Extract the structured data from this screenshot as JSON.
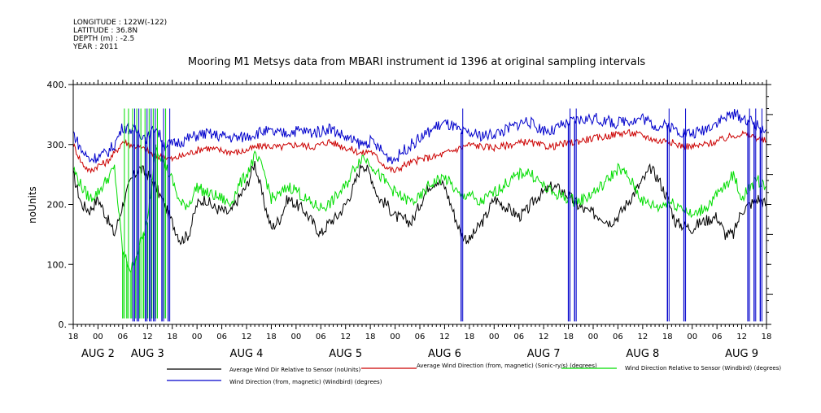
{
  "header": {
    "longitude": "LONGITUDE : 122W(-122)",
    "latitude": "LATITUDE : 36.8N",
    "depth": "DEPTH (m) : -2.5",
    "year": "YEAR : 2011"
  },
  "chart_data": {
    "type": "line",
    "title": "Mooring M1 Metsys data from MBARI instrument id 1396 at original sampling intervals",
    "xlabel": "",
    "ylabel": "noUnits",
    "ylim": [
      0,
      400
    ],
    "y_ticks": [
      0,
      100,
      200,
      300,
      400
    ],
    "y_tick_labels": [
      "0.",
      "100.",
      "200.",
      "300.",
      "400."
    ],
    "x_range_hours": [
      -6,
      162
    ],
    "x_tick_labels": [
      "18",
      "00",
      "06",
      "12",
      "18",
      "00",
      "06",
      "12",
      "18",
      "00",
      "06",
      "12",
      "18",
      "00",
      "06",
      "12",
      "18",
      "00",
      "06",
      "12",
      "18",
      "00",
      "06",
      "12",
      "18",
      "00",
      "06",
      "12",
      "18"
    ],
    "day_labels": [
      {
        "text": "AUG  2",
        "hour": 0
      },
      {
        "text": "AUG  3",
        "hour": 12
      },
      {
        "text": "AUG  4",
        "hour": 36
      },
      {
        "text": "AUG  5",
        "hour": 60
      },
      {
        "text": "AUG  6",
        "hour": 84
      },
      {
        "text": "AUG  7",
        "hour": 108
      },
      {
        "text": "AUG  8",
        "hour": 132
      },
      {
        "text": "AUG  9",
        "hour": 156
      }
    ],
    "grid": false,
    "legend_position": "bottom",
    "series": [
      {
        "name": "Average Wind Dir Relative to Sensor (noUnits)",
        "color": "#000000",
        "x": [
          -6,
          -4,
          -2,
          0,
          2,
          4,
          6,
          8,
          10,
          12,
          14,
          16,
          18,
          20,
          22,
          24,
          26,
          28,
          30,
          32,
          34,
          36,
          38,
          40,
          42,
          44,
          46,
          48,
          50,
          52,
          54,
          56,
          58,
          60,
          62,
          64,
          66,
          68,
          70,
          72,
          74,
          76,
          78,
          80,
          82,
          84,
          86,
          88,
          90,
          92,
          94,
          96,
          98,
          100,
          102,
          104,
          106,
          108,
          110,
          112,
          114,
          116,
          118,
          120,
          122,
          124,
          126,
          128,
          130,
          132,
          134,
          136,
          138,
          140,
          142,
          144,
          146,
          148,
          150,
          152,
          154,
          156,
          158,
          160,
          162
        ],
        "y": [
          250,
          200,
          190,
          210,
          180,
          150,
          200,
          240,
          260,
          250,
          230,
          200,
          170,
          140,
          150,
          200,
          210,
          195,
          190,
          185,
          210,
          230,
          270,
          210,
          160,
          175,
          210,
          200,
          190,
          170,
          150,
          170,
          180,
          200,
          230,
          270,
          250,
          210,
          200,
          180,
          175,
          170,
          200,
          230,
          240,
          230,
          190,
          150,
          140,
          160,
          180,
          210,
          200,
          190,
          180,
          190,
          210,
          220,
          230,
          225,
          215,
          200,
          190,
          185,
          180,
          170,
          180,
          200,
          220,
          240,
          260,
          240,
          210,
          170,
          165,
          160,
          170,
          175,
          180,
          150,
          150,
          190,
          200,
          210,
          200
        ]
      },
      {
        "name": "Average Wind Direction (from, magnetic) (Sonic-ry/s) (degrees)",
        "color": "#cc0000",
        "x": [
          -6,
          -4,
          -2,
          0,
          2,
          4,
          6,
          8,
          10,
          12,
          14,
          16,
          18,
          20,
          22,
          24,
          26,
          28,
          30,
          32,
          34,
          36,
          38,
          40,
          42,
          44,
          46,
          48,
          50,
          52,
          54,
          56,
          58,
          60,
          62,
          64,
          66,
          68,
          70,
          72,
          74,
          76,
          78,
          80,
          82,
          84,
          86,
          88,
          90,
          92,
          94,
          96,
          98,
          100,
          102,
          104,
          106,
          108,
          110,
          112,
          114,
          116,
          118,
          120,
          122,
          124,
          126,
          128,
          130,
          132,
          134,
          136,
          138,
          140,
          142,
          144,
          146,
          148,
          150,
          152,
          154,
          156,
          158,
          160,
          162
        ],
        "y": [
          300,
          270,
          255,
          265,
          270,
          285,
          305,
          300,
          295,
          290,
          280,
          280,
          275,
          280,
          285,
          290,
          295,
          292,
          290,
          288,
          287,
          290,
          295,
          298,
          297,
          295,
          298,
          300,
          298,
          296,
          300,
          305,
          300,
          295,
          290,
          285,
          290,
          275,
          262,
          255,
          265,
          270,
          275,
          278,
          280,
          285,
          290,
          295,
          300,
          298,
          296,
          295,
          297,
          300,
          302,
          305,
          300,
          298,
          296,
          300,
          302,
          305,
          308,
          310,
          312,
          315,
          318,
          320,
          318,
          315,
          310,
          305,
          308,
          300,
          298,
          296,
          298,
          302,
          305,
          310,
          315,
          318,
          315,
          310,
          305
        ]
      },
      {
        "name": "Wind Direction Relative to Sensor (Windbird) (degrees)",
        "color": "#00dd00",
        "x": [
          -6,
          -4,
          -2,
          0,
          2,
          4,
          6,
          8,
          10,
          12,
          14,
          16,
          18,
          20,
          22,
          24,
          26,
          28,
          30,
          32,
          34,
          36,
          38,
          40,
          42,
          44,
          46,
          48,
          50,
          52,
          54,
          56,
          58,
          60,
          62,
          64,
          66,
          68,
          70,
          72,
          74,
          76,
          78,
          80,
          82,
          84,
          86,
          88,
          90,
          92,
          94,
          96,
          98,
          100,
          102,
          104,
          106,
          108,
          110,
          112,
          114,
          116,
          118,
          120,
          122,
          124,
          126,
          128,
          130,
          132,
          134,
          136,
          138,
          140,
          142,
          144,
          146,
          148,
          150,
          152,
          154,
          156,
          158,
          160,
          162
        ],
        "y": [
          260,
          230,
          210,
          220,
          240,
          260,
          120,
          90,
          130,
          170,
          300,
          270,
          240,
          200,
          200,
          230,
          220,
          215,
          210,
          200,
          230,
          250,
          280,
          260,
          210,
          215,
          230,
          225,
          210,
          200,
          195,
          200,
          215,
          230,
          260,
          280,
          270,
          250,
          235,
          220,
          210,
          205,
          210,
          230,
          240,
          245,
          230,
          210,
          220,
          200,
          210,
          220,
          230,
          240,
          250,
          255,
          245,
          230,
          220,
          215,
          210,
          205,
          210,
          220,
          230,
          245,
          260,
          250,
          230,
          205,
          200,
          195,
          205,
          200,
          195,
          180,
          190,
          200,
          215,
          230,
          250,
          210,
          230,
          240,
          230
        ]
      },
      {
        "name": "Wind Direction (from, magnetic) (Windbird) (degrees)",
        "color": "#0000cc",
        "x": [
          -6,
          -4,
          -2,
          0,
          2,
          4,
          6,
          8,
          10,
          12,
          14,
          16,
          18,
          20,
          22,
          24,
          26,
          28,
          30,
          32,
          34,
          36,
          38,
          40,
          42,
          44,
          46,
          48,
          50,
          52,
          54,
          56,
          58,
          60,
          62,
          64,
          66,
          68,
          70,
          72,
          74,
          76,
          78,
          80,
          82,
          84,
          86,
          88,
          90,
          92,
          94,
          96,
          98,
          100,
          102,
          104,
          106,
          108,
          110,
          112,
          114,
          116,
          118,
          120,
          122,
          124,
          126,
          128,
          130,
          132,
          134,
          136,
          138,
          140,
          142,
          144,
          146,
          148,
          150,
          152,
          154,
          156,
          158,
          160,
          162
        ],
        "y": [
          320,
          290,
          275,
          280,
          285,
          300,
          330,
          325,
          320,
          310,
          330,
          300,
          300,
          305,
          310,
          315,
          318,
          316,
          314,
          312,
          311,
          314,
          318,
          322,
          320,
          318,
          320,
          323,
          322,
          320,
          322,
          328,
          320,
          312,
          305,
          300,
          305,
          295,
          280,
          275,
          290,
          300,
          310,
          320,
          330,
          335,
          330,
          320,
          318,
          316,
          315,
          318,
          322,
          328,
          335,
          340,
          330,
          325,
          322,
          330,
          335,
          340,
          342,
          344,
          340,
          338,
          335,
          342,
          340,
          345,
          335,
          330,
          332,
          325,
          320,
          318,
          322,
          330,
          338,
          345,
          350,
          345,
          340,
          330,
          325
        ]
      }
    ],
    "spikes": [
      {
        "series": 2,
        "hours": [
          6,
          7,
          8,
          9,
          10,
          11,
          12,
          13,
          14,
          16
        ],
        "to": 10
      },
      {
        "series": 3,
        "hours": [
          8.5,
          9.5,
          11.5,
          12.5,
          13.5,
          15.5,
          17,
          88,
          114,
          115.5,
          138,
          142,
          157.5,
          159,
          160.5
        ],
        "to": 5
      }
    ]
  },
  "legend": {
    "items": [
      {
        "label": "Average Wind Dir Relative to Sensor (noUnits)",
        "color": "#000000"
      },
      {
        "label": "Average Wind Direction (from, magnetic) (Sonic-ry/s) (degrees)",
        "color": "#cc0000"
      },
      {
        "label": "Wind Direction Relative to Sensor (Windbird) (degrees)",
        "color": "#00dd00"
      },
      {
        "label": "Wind Direction (from, magnetic) (Windbird) (degrees)",
        "color": "#0000cc"
      }
    ]
  }
}
